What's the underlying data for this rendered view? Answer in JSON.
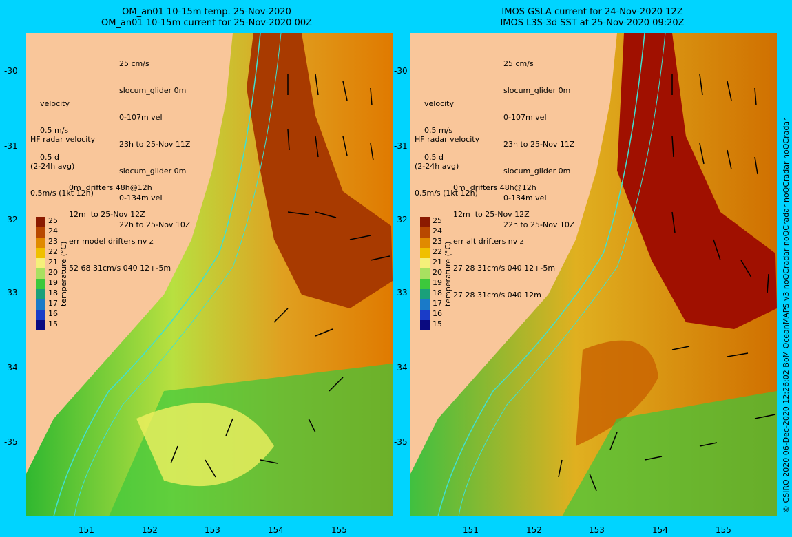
{
  "left": {
    "title1": "OM_an01 10-15m temp. 25-Nov-2020",
    "title2": "OM_an01 10-15m current for 25-Nov-2020 00Z",
    "legend_top": [
      "25 cm/s",
      "slocum_glider 0m",
      "0-107m vel",
      "23h to 25-Nov 11Z",
      "slocum_glider 0m",
      "0-134m vel",
      "22h to 25-Nov 10Z"
    ],
    "velocity": [
      "velocity",
      "0.5 m/s",
      "0.5 d"
    ],
    "hf": [
      "HF radar velocity",
      "(2-24h avg)",
      "0.5m/s (1kt 12h)"
    ],
    "drifters": [
      "0m  drifters 48h@12h",
      "12m  to 25-Nov 12Z",
      "err model drifters nv z",
      "52 68 31cm/s 040 12+-5m"
    ]
  },
  "right": {
    "title1": "IMOS GSLA current for 24-Nov-2020 12Z",
    "title2": "IMOS L3S-3d SST at 25-Nov-2020 09:20Z",
    "legend_top": [
      "25 cm/s",
      "slocum_glider 0m",
      "0-107m vel",
      "23h to 25-Nov 11Z",
      "slocum_glider 0m",
      "0-134m vel",
      "22h to 25-Nov 10Z"
    ],
    "velocity": [
      "velocity",
      "0.5 m/s",
      "0.5 d"
    ],
    "hf": [
      "HF radar velocity",
      "(2-24h avg)",
      "0.5m/s (1kt 12h)"
    ],
    "drifters": [
      "0m  drifters 48h@12h",
      "12m  to 25-Nov 12Z",
      "err alt drifters nv z",
      "27 28 31cm/s 040 12+-5m",
      "27 28 31cm/s 040 12m"
    ]
  },
  "yticks": [
    "-30",
    "-31",
    "-32",
    "-33",
    "-34",
    "-35"
  ],
  "xticks": [
    "151",
    "152",
    "153",
    "154",
    "155"
  ],
  "colorbar": {
    "labels": [
      "25",
      "24",
      "23",
      "22",
      "21",
      "20",
      "19",
      "18",
      "17",
      "16",
      "15"
    ],
    "title": "temperature (°C)",
    "colors": [
      "#8b1a00",
      "#b84800",
      "#e08a00",
      "#f0c000",
      "#f5f07a",
      "#a8e060",
      "#3cc83c",
      "#1aa07a",
      "#1a7ac8",
      "#1a3cc8",
      "#0a0a80"
    ]
  },
  "credit": "© CSIRO 2020   06-Dec-2020 12:26:02 BoM OceanMAPS v3 noQCradar noQCradar noQCradar noQCradar",
  "colors": {
    "land": "#f9c69a",
    "frame": "#00d4ff",
    "glider": "#ff00ff",
    "arrow": "#000000",
    "bathy": "#40e0d0"
  }
}
